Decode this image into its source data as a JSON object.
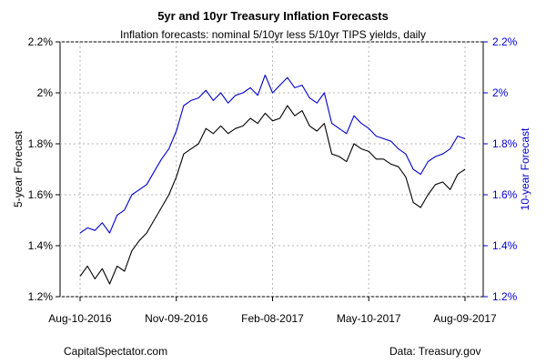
{
  "chart_data": {
    "type": "line",
    "title": "5yr and 10yr Treasury Inflation Forecasts",
    "subtitle": "Inflation forecasts: nominal 5/10yr less 5/10yr TIPS yields, daily",
    "ylabel_left": "5-year Forecast",
    "ylabel_right": "10-year Forecast",
    "x_tick_labels": [
      "Aug-10-2016",
      "Nov-09-2016",
      "Feb-08-2017",
      "May-10-2017",
      "Aug-09-2017"
    ],
    "x_range": [
      "2016-08-10",
      "2017-08-09"
    ],
    "y_ticks": [
      1.2,
      1.4,
      1.6,
      1.8,
      2.0,
      2.2
    ],
    "y_tick_labels": [
      "1.2%",
      "1.4%",
      "1.6%",
      "1.8%",
      "2%",
      "2.2%"
    ],
    "ylim": [
      1.2,
      2.2
    ],
    "grid": true,
    "colors": {
      "five_year": "#000000",
      "ten_year": "#0000cc"
    },
    "series": [
      {
        "color_key": "five_year",
        "dates": [
          "2016-08-10",
          "2016-08-17",
          "2016-08-24",
          "2016-08-31",
          "2016-09-07",
          "2016-09-14",
          "2016-09-21",
          "2016-09-28",
          "2016-10-05",
          "2016-10-12",
          "2016-10-19",
          "2016-10-26",
          "2016-11-02",
          "2016-11-09",
          "2016-11-16",
          "2016-11-23",
          "2016-11-30",
          "2016-12-07",
          "2016-12-14",
          "2016-12-21",
          "2016-12-28",
          "2017-01-04",
          "2017-01-11",
          "2017-01-18",
          "2017-01-25",
          "2017-02-01",
          "2017-02-08",
          "2017-02-15",
          "2017-02-22",
          "2017-03-01",
          "2017-03-08",
          "2017-03-15",
          "2017-03-22",
          "2017-03-29",
          "2017-04-05",
          "2017-04-12",
          "2017-04-19",
          "2017-04-26",
          "2017-05-03",
          "2017-05-10",
          "2017-05-17",
          "2017-05-24",
          "2017-05-31",
          "2017-06-07",
          "2017-06-14",
          "2017-06-21",
          "2017-06-28",
          "2017-07-05",
          "2017-07-12",
          "2017-07-19",
          "2017-07-26",
          "2017-08-02",
          "2017-08-09"
        ],
        "values": [
          1.28,
          1.32,
          1.27,
          1.31,
          1.25,
          1.32,
          1.3,
          1.38,
          1.42,
          1.45,
          1.5,
          1.55,
          1.6,
          1.67,
          1.76,
          1.78,
          1.8,
          1.86,
          1.84,
          1.87,
          1.84,
          1.86,
          1.87,
          1.9,
          1.88,
          1.92,
          1.89,
          1.9,
          1.95,
          1.91,
          1.93,
          1.87,
          1.85,
          1.88,
          1.76,
          1.75,
          1.73,
          1.8,
          1.78,
          1.77,
          1.74,
          1.74,
          1.72,
          1.71,
          1.67,
          1.57,
          1.55,
          1.6,
          1.64,
          1.65,
          1.62,
          1.68,
          1.7
        ]
      },
      {
        "color_key": "ten_year",
        "dates": [
          "2016-08-10",
          "2016-08-17",
          "2016-08-24",
          "2016-08-31",
          "2016-09-07",
          "2016-09-14",
          "2016-09-21",
          "2016-09-28",
          "2016-10-05",
          "2016-10-12",
          "2016-10-19",
          "2016-10-26",
          "2016-11-02",
          "2016-11-09",
          "2016-11-16",
          "2016-11-23",
          "2016-11-30",
          "2016-12-07",
          "2016-12-14",
          "2016-12-21",
          "2016-12-28",
          "2017-01-04",
          "2017-01-11",
          "2017-01-18",
          "2017-01-25",
          "2017-02-01",
          "2017-02-08",
          "2017-02-15",
          "2017-02-22",
          "2017-03-01",
          "2017-03-08",
          "2017-03-15",
          "2017-03-22",
          "2017-03-29",
          "2017-04-05",
          "2017-04-12",
          "2017-04-19",
          "2017-04-26",
          "2017-05-03",
          "2017-05-10",
          "2017-05-17",
          "2017-05-24",
          "2017-05-31",
          "2017-06-07",
          "2017-06-14",
          "2017-06-21",
          "2017-06-28",
          "2017-07-05",
          "2017-07-12",
          "2017-07-19",
          "2017-07-26",
          "2017-08-02",
          "2017-08-09"
        ],
        "values": [
          1.45,
          1.47,
          1.46,
          1.49,
          1.45,
          1.52,
          1.54,
          1.6,
          1.62,
          1.64,
          1.69,
          1.74,
          1.78,
          1.85,
          1.95,
          1.97,
          1.98,
          2.01,
          1.97,
          2.0,
          1.96,
          1.99,
          2.0,
          2.02,
          1.99,
          2.07,
          2.0,
          2.03,
          2.06,
          2.02,
          2.03,
          1.98,
          1.96,
          2.0,
          1.88,
          1.86,
          1.84,
          1.91,
          1.88,
          1.86,
          1.83,
          1.82,
          1.81,
          1.78,
          1.76,
          1.7,
          1.68,
          1.73,
          1.75,
          1.76,
          1.78,
          1.83,
          1.82
        ]
      }
    ]
  },
  "footer": {
    "left": "CapitalSpectator.com",
    "right": "Data: Treasury.gov"
  }
}
